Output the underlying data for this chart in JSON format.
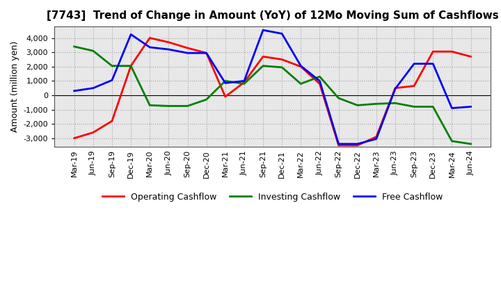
{
  "title": "[7743]  Trend of Change in Amount (YoY) of 12Mo Moving Sum of Cashflows",
  "ylabel": "Amount (million yen)",
  "x_labels": [
    "Mar-19",
    "Jun-19",
    "Sep-19",
    "Dec-19",
    "Mar-20",
    "Jun-20",
    "Sep-20",
    "Dec-20",
    "Mar-21",
    "Jun-21",
    "Sep-21",
    "Dec-21",
    "Mar-22",
    "Jun-22",
    "Sep-22",
    "Dec-22",
    "Mar-23",
    "Jun-23",
    "Sep-23",
    "Dec-23",
    "Mar-24",
    "Jun-24"
  ],
  "operating": [
    -3000,
    -2600,
    -1800,
    2050,
    4000,
    3700,
    3300,
    2950,
    -100,
    900,
    2700,
    2500,
    2000,
    800,
    -3500,
    -3500,
    -2900,
    500,
    650,
    3050,
    3050,
    2700
  ],
  "investing": [
    3400,
    3100,
    2050,
    2050,
    -700,
    -750,
    -750,
    -300,
    1000,
    800,
    2050,
    1950,
    800,
    1300,
    -200,
    -700,
    -600,
    -550,
    -800,
    -800,
    -3200,
    -3400
  ],
  "free": [
    300,
    500,
    1050,
    4250,
    3350,
    3200,
    2950,
    2950,
    850,
    1000,
    4550,
    4300,
    2050,
    1000,
    -3400,
    -3400,
    -3050,
    450,
    2200,
    2200,
    -900,
    -800
  ],
  "operating_color": "#ff0000",
  "investing_color": "#008000",
  "free_color": "#0000ff",
  "bg_outer": "#ffffff",
  "bg_plot": "#e8e8e8",
  "grid_color": "#999999",
  "ylim": [
    -3600,
    4800
  ],
  "yticks": [
    -3000,
    -2000,
    -1000,
    0,
    1000,
    2000,
    3000,
    4000
  ],
  "legend_labels": [
    "Operating Cashflow",
    "Investing Cashflow",
    "Free Cashflow"
  ],
  "linewidth": 2.0,
  "title_fontsize": 11,
  "axis_fontsize": 8,
  "ylabel_fontsize": 9
}
